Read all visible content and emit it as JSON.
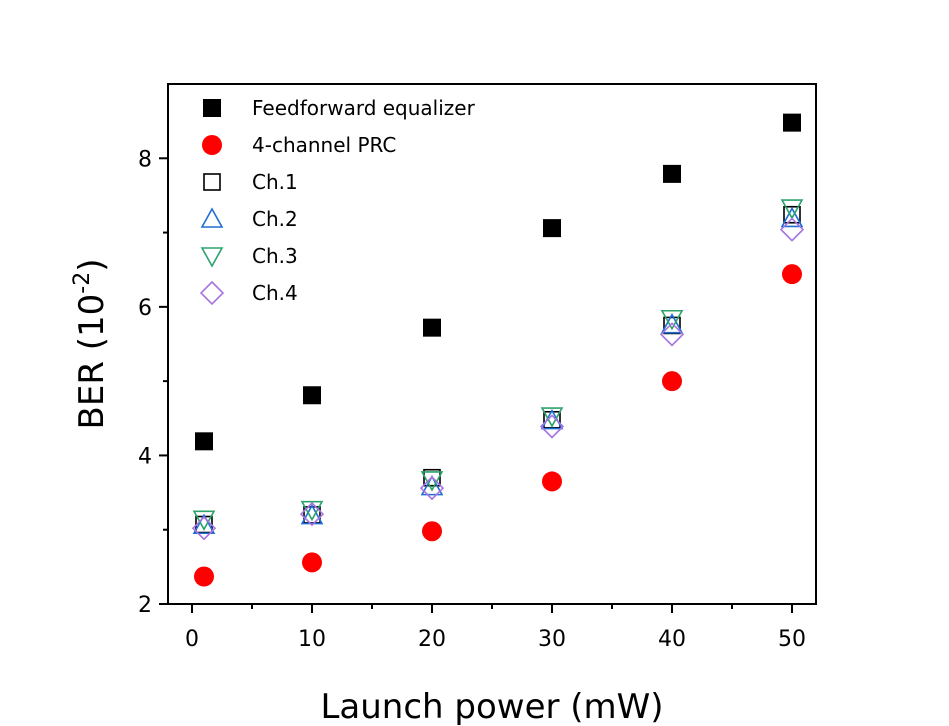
{
  "chart_data": {
    "type": "scatter",
    "title": "",
    "xlabel": "Launch power (mW)",
    "ylabel_base": "BER (10",
    "ylabel_exp": "-2",
    "ylabel_close": ")",
    "xlim": [
      -2,
      52
    ],
    "ylim": [
      2,
      9
    ],
    "xticks": [
      0,
      10,
      20,
      30,
      40,
      50
    ],
    "yticks": [
      2,
      4,
      6,
      8
    ],
    "xtick_labels": [
      "0",
      "10",
      "20",
      "30",
      "40",
      "50"
    ],
    "ytick_labels": [
      "2",
      "4",
      "6",
      "8"
    ],
    "x": [
      1,
      10,
      20,
      30,
      40,
      50
    ],
    "legend_position": "top-left",
    "series": [
      {
        "name": "Feedforward equalizer",
        "marker": "square-filled",
        "color": "#000000",
        "values": [
          4.19,
          4.81,
          5.72,
          7.06,
          7.79,
          8.48
        ]
      },
      {
        "name": "4-channel PRC",
        "marker": "circle-filled",
        "color": "#ff0000",
        "values": [
          2.37,
          2.56,
          2.98,
          3.65,
          5.0,
          6.44
        ]
      },
      {
        "name": "Ch.1",
        "marker": "square-open",
        "color": "#000000",
        "values": [
          3.07,
          3.2,
          3.7,
          4.48,
          5.75,
          7.24
        ]
      },
      {
        "name": "Ch.2",
        "marker": "triangle-up-open",
        "color": "#1f6fd6",
        "values": [
          3.06,
          3.19,
          3.58,
          4.47,
          5.76,
          7.19
        ]
      },
      {
        "name": "Ch.3",
        "marker": "triangle-down-open",
        "color": "#2ca36b",
        "values": [
          3.14,
          3.27,
          3.67,
          4.53,
          5.84,
          7.33
        ]
      },
      {
        "name": "Ch.4",
        "marker": "diamond-open",
        "color": "#a774e0",
        "values": [
          3.02,
          3.21,
          3.56,
          4.39,
          5.63,
          7.04
        ]
      }
    ]
  }
}
